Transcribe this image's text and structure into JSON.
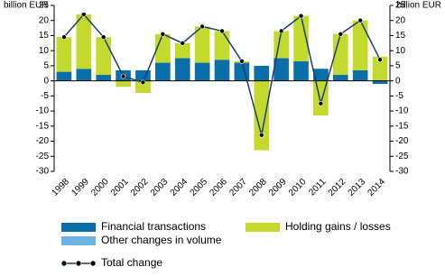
{
  "chart_data": {
    "type": "stacked-bar-line",
    "y_label": "billion EUR",
    "y2_label": "billion EUR",
    "categories": [
      "1998",
      "1999",
      "2000",
      "2001",
      "2002",
      "2003",
      "2004",
      "2005",
      "2006",
      "2007",
      "2008",
      "2009",
      "2010",
      "2011",
      "2012",
      "2013",
      "2014"
    ],
    "series": [
      {
        "name": "Financial transactions",
        "color": "#0a6fa8",
        "type": "bar",
        "values": [
          3,
          4,
          2,
          3.5,
          3.5,
          6,
          7.5,
          6,
          7,
          6,
          5,
          7.5,
          6.5,
          4,
          2,
          3.5,
          -1
        ]
      },
      {
        "name": "Other changes in volume",
        "color": "#6cb4e4",
        "type": "bar",
        "values": [
          0,
          0,
          0,
          0,
          0,
          0,
          0,
          0,
          0,
          0,
          0,
          0,
          0,
          0,
          0,
          0,
          0
        ]
      },
      {
        "name": "Holding gains / losses",
        "color": "#c3d92e",
        "type": "bar",
        "values": [
          11.5,
          18,
          12.5,
          -2,
          -4,
          9.5,
          5,
          12,
          9.5,
          0.5,
          -23,
          9,
          15,
          -11.5,
          13.5,
          16.5,
          8
        ]
      },
      {
        "name": "Total change",
        "color": "#1b3f6e",
        "type": "line",
        "values": [
          14.5,
          22,
          14.5,
          1.5,
          -0.5,
          15.5,
          12.5,
          18,
          16.5,
          6.5,
          -18,
          16.5,
          21.5,
          -7.5,
          15.5,
          20,
          7
        ]
      }
    ],
    "ylim": [
      -30,
      25
    ],
    "yticks": [
      -30,
      -25,
      -20,
      -15,
      -10,
      -5,
      0,
      5,
      10,
      15,
      20,
      25
    ],
    "y2lim": [
      -30,
      25
    ],
    "y2ticks": [
      -30,
      -25,
      -20,
      -15,
      -10,
      -5,
      0,
      5,
      10,
      15,
      20,
      25
    ]
  }
}
